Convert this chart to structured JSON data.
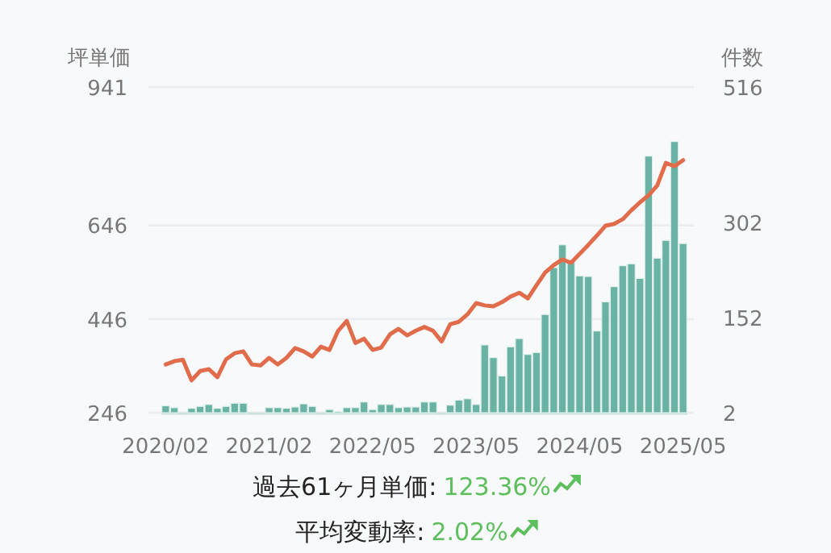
{
  "chart_data": {
    "type": "bar",
    "ylabel": "坪単価",
    "y2label": "件数",
    "categories": [
      "2020/02",
      null,
      null,
      null,
      null,
      null,
      null,
      null,
      null,
      null,
      null,
      null,
      "2021/02",
      null,
      null,
      null,
      null,
      null,
      null,
      null,
      null,
      null,
      null,
      null,
      "2022/05",
      null,
      null,
      null,
      null,
      null,
      null,
      null,
      null,
      null,
      null,
      null,
      "2023/05",
      null,
      null,
      null,
      null,
      null,
      null,
      null,
      null,
      null,
      null,
      null,
      "2024/05",
      null,
      null,
      null,
      null,
      null,
      null,
      null,
      null,
      null,
      null,
      null,
      "2025/05"
    ],
    "series": [
      {
        "axis": "y2",
        "color": "#6ab3a4",
        "values": [
          13,
          10,
          2,
          9,
          12,
          15,
          9,
          12,
          17,
          17,
          2,
          2,
          10,
          10,
          9,
          11,
          16,
          12,
          2,
          7,
          4,
          10,
          10,
          19,
          7,
          15,
          15,
          10,
          11,
          11,
          19,
          19,
          2,
          14,
          22,
          24,
          15,
          109,
          89,
          60,
          106,
          119,
          94,
          97,
          157,
          231,
          267,
          242,
          218,
          217,
          131,
          177,
          201,
          234,
          237,
          214,
          407,
          246,
          274,
          430,
          269
        ]
      },
      {
        "type": "line",
        "color": "#e06c4b",
        "values": [
          349,
          356,
          359,
          315,
          335,
          339,
          322,
          360,
          373,
          377,
          349,
          347,
          363,
          349,
          363,
          384,
          377,
          366,
          387,
          380,
          421,
          442,
          395,
          404,
          380,
          385,
          413,
          425,
          411,
          421,
          429,
          421,
          398,
          435,
          440,
          456,
          480,
          475,
          473,
          482,
          494,
          502,
          490,
          518,
          545,
          561,
          573,
          566,
          585,
          604,
          624,
          645,
          649,
          659,
          678,
          695,
          710,
          731,
          779,
          772,
          785
        ]
      }
    ],
    "ylim": [
      246,
      941
    ],
    "yticks": [
      246,
      446,
      646,
      941
    ],
    "y2lim": [
      2,
      516
    ],
    "y2ticks": [
      2,
      152,
      302,
      516
    ],
    "grid": "y",
    "annotations": [
      "過去61ヶ月単価:",
      "123.36%",
      "平均変動率:",
      "2.02%"
    ]
  }
}
